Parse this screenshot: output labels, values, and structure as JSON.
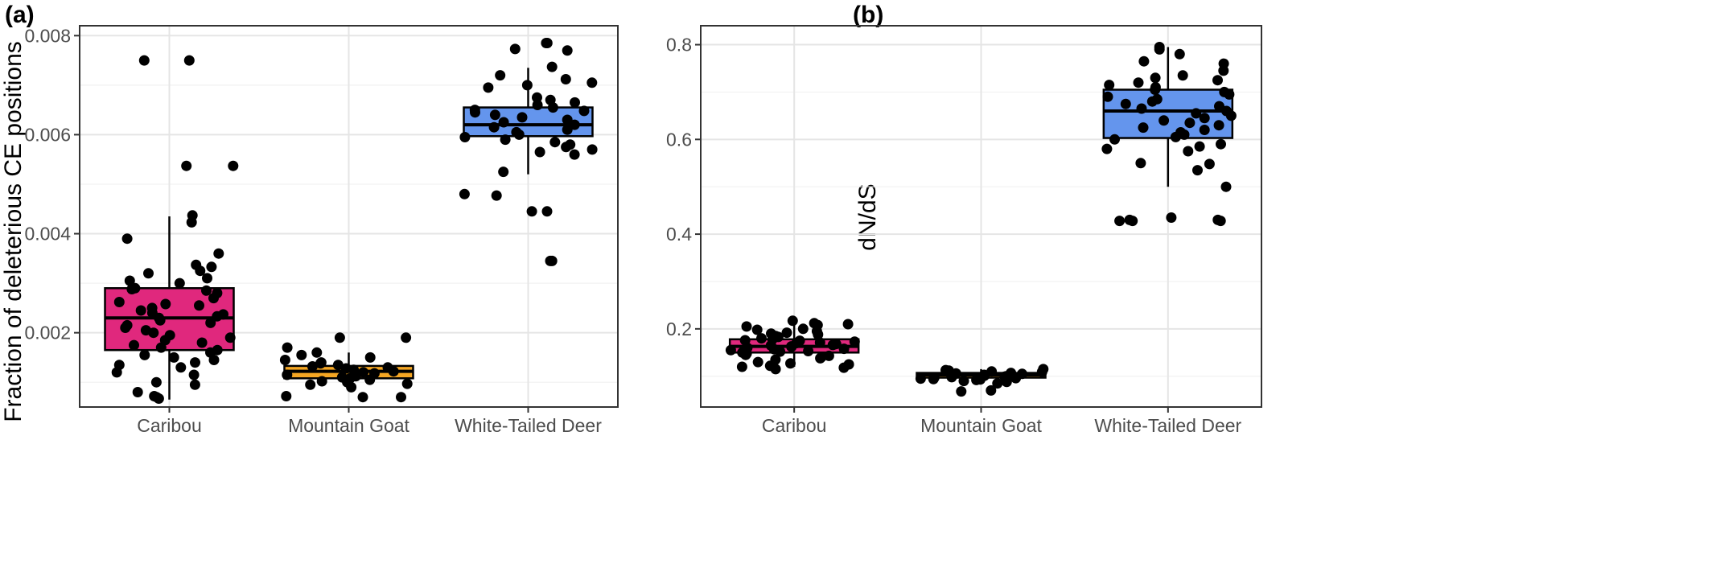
{
  "chart_data": [
    {
      "type": "boxplot",
      "panel_label": "(a)",
      "xlabel": "",
      "ylabel": "Fraction of deleterious CE positions",
      "ylim": [
        0.0005,
        0.0082
      ],
      "y_ticks": [
        0.002,
        0.004,
        0.006,
        0.008
      ],
      "y_tick_labels": [
        "0.002",
        "0.004",
        "0.006",
        "0.008"
      ],
      "grid": true,
      "categories": [
        "Caribou",
        "Mountain Goat",
        "White-Tailed Deer"
      ],
      "colors": [
        "#E0287D",
        "#F5A623",
        "#6495ED"
      ],
      "boxes": [
        {
          "whisker_low": 0.00065,
          "q1": 0.00165,
          "median": 0.0023,
          "q3": 0.0029,
          "whisker_high": 0.00435
        },
        {
          "whisker_low": 0.00095,
          "q1": 0.00108,
          "median": 0.00122,
          "q3": 0.00133,
          "whisker_high": 0.0016
        },
        {
          "whisker_low": 0.0052,
          "q1": 0.00597,
          "median": 0.0062,
          "q3": 0.00655,
          "whisker_high": 0.00735
        }
      ],
      "points": [
        [
          0.0075,
          0.0075,
          0.00537,
          0.00537,
          0.00437,
          0.00423,
          0.0039,
          0.0036,
          0.00337,
          0.00333,
          0.00325,
          0.0032,
          0.0031,
          0.00305,
          0.003,
          0.0029,
          0.00288,
          0.00285,
          0.0028,
          0.0027,
          0.00262,
          0.00258,
          0.00255,
          0.0025,
          0.00245,
          0.0024,
          0.00237,
          0.00233,
          0.0023,
          0.00225,
          0.0022,
          0.00215,
          0.0021,
          0.00205,
          0.002,
          0.00195,
          0.0019,
          0.00185,
          0.0018,
          0.00175,
          0.0017,
          0.00165,
          0.0016,
          0.00155,
          0.0015,
          0.00145,
          0.0014,
          0.00135,
          0.0013,
          0.0012,
          0.00115,
          0.001,
          0.00095,
          0.0008,
          0.00072,
          0.0007,
          0.00067
        ],
        [
          0.0019,
          0.0019,
          0.0017,
          0.0016,
          0.00155,
          0.0015,
          0.00145,
          0.0014,
          0.00138,
          0.00135,
          0.00132,
          0.0013,
          0.00128,
          0.00125,
          0.00122,
          0.0012,
          0.00118,
          0.00115,
          0.00112,
          0.0011,
          0.00108,
          0.00105,
          0.00102,
          0.001,
          0.00097,
          0.00095,
          0.0009,
          0.0007,
          0.0007,
          0.00072
        ],
        [
          0.00785,
          0.00785,
          0.00773,
          0.0077,
          0.00737,
          0.0072,
          0.00712,
          0.00705,
          0.007,
          0.00695,
          0.00675,
          0.0067,
          0.00665,
          0.0066,
          0.00655,
          0.0065,
          0.00648,
          0.00645,
          0.0064,
          0.00635,
          0.0063,
          0.00625,
          0.0062,
          0.00615,
          0.0061,
          0.00605,
          0.006,
          0.00595,
          0.0059,
          0.00585,
          0.0058,
          0.00575,
          0.0057,
          0.00565,
          0.0056,
          0.00525,
          0.0048,
          0.00477,
          0.00445,
          0.00445,
          0.00345,
          0.00345
        ]
      ]
    },
    {
      "type": "boxplot",
      "panel_label": "(b)",
      "xlabel": "",
      "ylabel": "dN/dS",
      "ylim": [
        0.035,
        0.84
      ],
      "y_ticks": [
        0.2,
        0.4,
        0.6,
        0.8
      ],
      "y_tick_labels": [
        "0.2",
        "0.4",
        "0.6",
        "0.8"
      ],
      "grid": true,
      "categories": [
        "Caribou",
        "Mountain Goat",
        "White-Tailed Deer"
      ],
      "colors": [
        "#E0287D",
        "#F5A623",
        "#6495ED"
      ],
      "boxes": [
        {
          "whisker_low": 0.12,
          "q1": 0.15,
          "median": 0.163,
          "q3": 0.178,
          "whisker_high": 0.215
        },
        {
          "whisker_low": 0.09,
          "q1": 0.097,
          "median": 0.103,
          "q3": 0.107,
          "whisker_high": 0.115
        },
        {
          "whisker_low": 0.5,
          "q1": 0.603,
          "median": 0.66,
          "q3": 0.705,
          "whisker_high": 0.795
        }
      ],
      "points": [
        [
          0.217,
          0.212,
          0.21,
          0.208,
          0.205,
          0.2,
          0.198,
          0.195,
          0.192,
          0.19,
          0.188,
          0.185,
          0.183,
          0.18,
          0.178,
          0.176,
          0.175,
          0.173,
          0.171,
          0.17,
          0.168,
          0.166,
          0.165,
          0.163,
          0.162,
          0.16,
          0.158,
          0.157,
          0.155,
          0.153,
          0.152,
          0.15,
          0.148,
          0.146,
          0.145,
          0.143,
          0.14,
          0.138,
          0.135,
          0.13,
          0.127,
          0.125,
          0.122,
          0.12,
          0.118,
          0.115
        ],
        [
          0.115,
          0.113,
          0.112,
          0.11,
          0.109,
          0.108,
          0.107,
          0.106,
          0.105,
          0.104,
          0.103,
          0.102,
          0.101,
          0.1,
          0.099,
          0.098,
          0.097,
          0.096,
          0.095,
          0.094,
          0.093,
          0.092,
          0.09,
          0.088,
          0.085,
          0.07,
          0.068
        ],
        [
          0.795,
          0.79,
          0.78,
          0.765,
          0.76,
          0.745,
          0.735,
          0.73,
          0.725,
          0.72,
          0.715,
          0.71,
          0.705,
          0.7,
          0.695,
          0.69,
          0.685,
          0.68,
          0.675,
          0.67,
          0.665,
          0.66,
          0.655,
          0.65,
          0.645,
          0.64,
          0.635,
          0.63,
          0.625,
          0.62,
          0.615,
          0.61,
          0.605,
          0.6,
          0.59,
          0.585,
          0.58,
          0.575,
          0.55,
          0.548,
          0.535,
          0.5,
          0.435,
          0.43,
          0.43,
          0.428,
          0.428,
          0.428
        ]
      ]
    }
  ]
}
